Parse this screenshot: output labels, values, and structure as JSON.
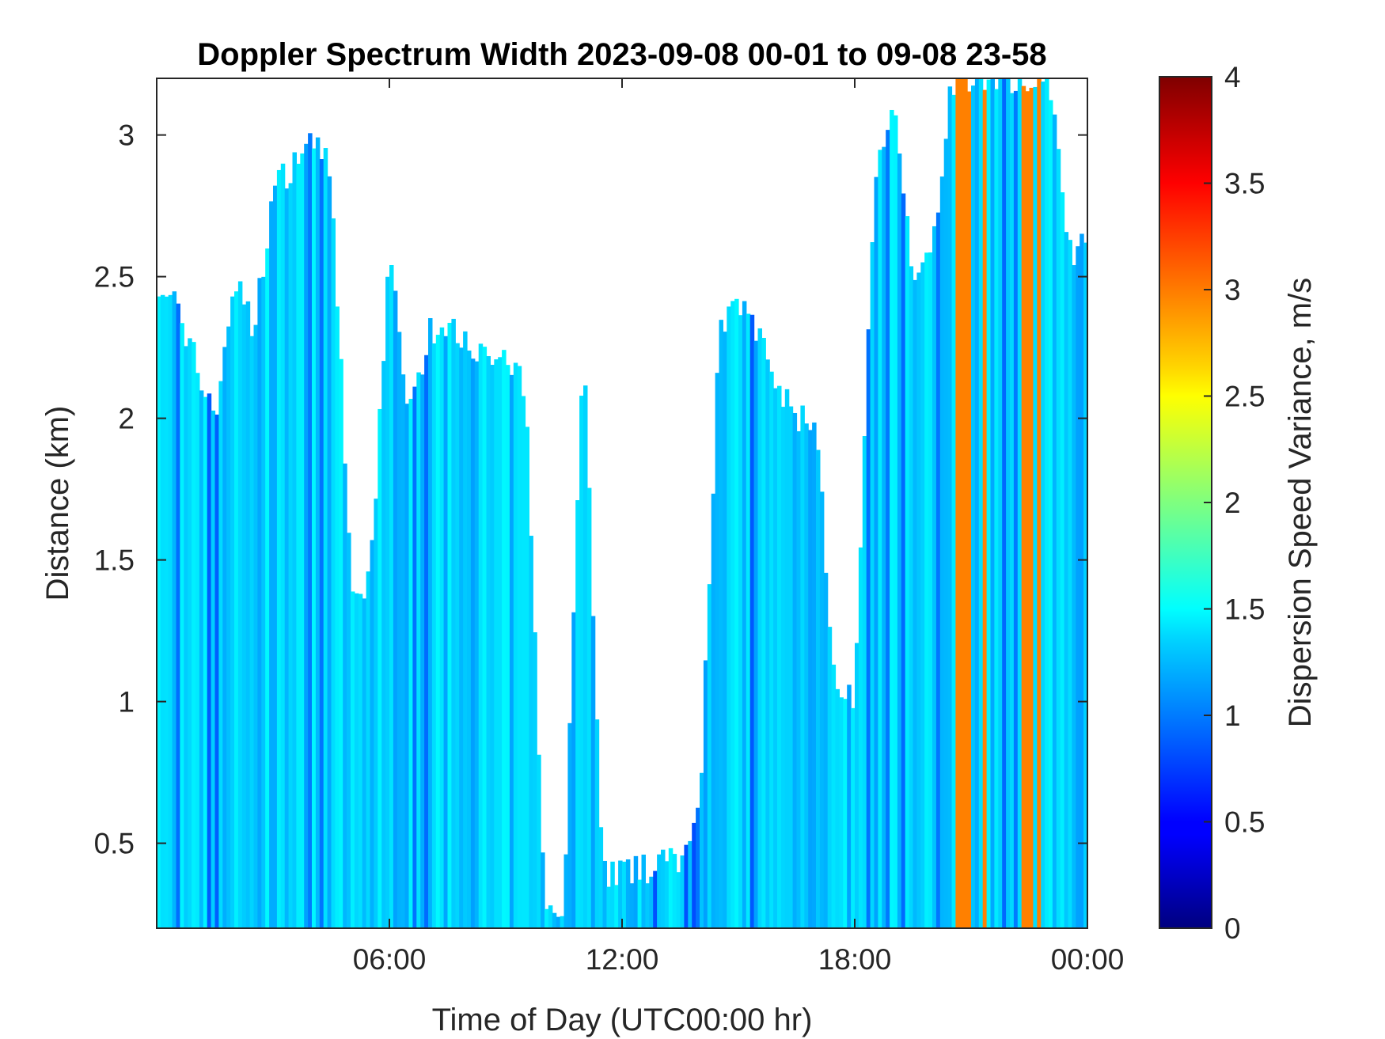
{
  "chart_data": {
    "type": "heatmap",
    "title": "Doppler Spectrum Width 2023-09-08 00-01 to 09-08 23-58",
    "xlabel": "Time of Day (UTC00:00 hr)",
    "ylabel": "Distance (km)",
    "xlim": [
      0,
      24
    ],
    "ylim": [
      0.2,
      3.2
    ],
    "x_ticks": [
      {
        "value": 6,
        "label": "06:00"
      },
      {
        "value": 12,
        "label": "12:00"
      },
      {
        "value": 18,
        "label": "18:00"
      },
      {
        "value": 24,
        "label": "00:00"
      }
    ],
    "y_ticks": [
      {
        "value": 0.5,
        "label": "0.5"
      },
      {
        "value": 1.0,
        "label": "1"
      },
      {
        "value": 1.5,
        "label": "1.5"
      },
      {
        "value": 2.0,
        "label": "2"
      },
      {
        "value": 2.5,
        "label": "2.5"
      },
      {
        "value": 3.0,
        "label": "3"
      }
    ],
    "colorbar": {
      "label": "Dispersion Speed Variance, m/s",
      "colormap": "jet",
      "clim": [
        0,
        4
      ],
      "ticks": [
        {
          "value": 0,
          "label": "0"
        },
        {
          "value": 0.5,
          "label": "0.5"
        },
        {
          "value": 1,
          "label": "1"
        },
        {
          "value": 1.5,
          "label": "1.5"
        },
        {
          "value": 2,
          "label": "2"
        },
        {
          "value": 2.5,
          "label": "2.5"
        },
        {
          "value": 3,
          "label": "3"
        },
        {
          "value": 3.5,
          "label": "3.5"
        },
        {
          "value": 4,
          "label": "4"
        }
      ]
    },
    "echo_top_km": {
      "hours": [
        0,
        0.5,
        1,
        1.5,
        2,
        2.5,
        3,
        3.5,
        4,
        4.5,
        5,
        5.5,
        6,
        6.5,
        7,
        7.5,
        8,
        8.5,
        9,
        9.5,
        10,
        10.5,
        11,
        11.5,
        12,
        12.5,
        13,
        13.5,
        14,
        14.5,
        15,
        15.5,
        16,
        16.5,
        17,
        17.5,
        18,
        18.5,
        19,
        19.5,
        20,
        20.5,
        21,
        21.5,
        22,
        22.5,
        23,
        23.5,
        24
      ],
      "top_km": [
        2.5,
        2.4,
        2.2,
        2.0,
        2.5,
        2.3,
        2.8,
        2.9,
        3.0,
        2.9,
        1.4,
        1.4,
        2.6,
        2.0,
        2.3,
        2.3,
        2.3,
        2.2,
        2.2,
        2.1,
        0.3,
        0.3,
        2.3,
        0.4,
        0.4,
        0.4,
        0.45,
        0.45,
        0.6,
        2.3,
        2.4,
        2.3,
        2.1,
        2.0,
        2.0,
        1.0,
        1.0,
        2.8,
        3.1,
        2.5,
        2.6,
        3.2,
        3.2,
        3.2,
        3.2,
        3.2,
        3.2,
        2.6,
        2.6
      ],
      "typical_value_ms": 1.3
    },
    "high_value_bands": [
      {
        "from_hour": 20.4,
        "to_hour": 21.5,
        "value_ms": 3.0
      },
      {
        "from_hour": 22.1,
        "to_hour": 22.9,
        "value_ms": 3.0
      }
    ]
  }
}
